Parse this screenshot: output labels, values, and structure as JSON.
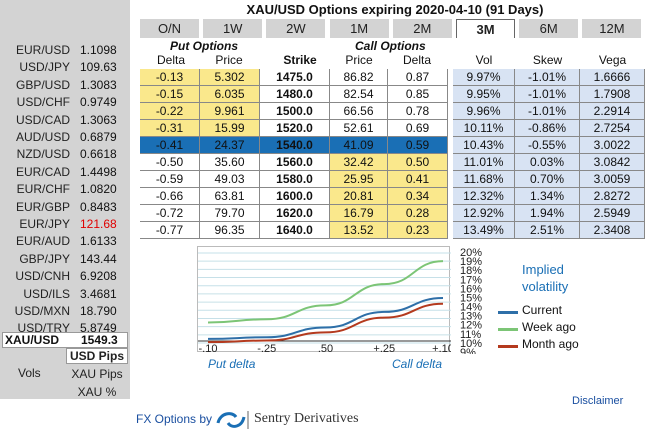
{
  "title": "XAU/USD Options expiring 2020-04-10 (91 Days)",
  "tabs": [
    "O/N",
    "1W",
    "2W",
    "1M",
    "2M",
    "3M",
    "6M",
    "12M"
  ],
  "active_tab": "3M",
  "fx_rates": [
    {
      "pair": "EUR/USD",
      "rate": "1.1098"
    },
    {
      "pair": "USD/JPY",
      "rate": "109.63"
    },
    {
      "pair": "GBP/USD",
      "rate": "1.3083"
    },
    {
      "pair": "USD/CHF",
      "rate": "0.9749"
    },
    {
      "pair": "USD/CAD",
      "rate": "1.3063"
    },
    {
      "pair": "AUD/USD",
      "rate": "0.6879"
    },
    {
      "pair": "NZD/USD",
      "rate": "0.6618"
    },
    {
      "pair": "EUR/CAD",
      "rate": "1.4498"
    },
    {
      "pair": "EUR/CHF",
      "rate": "1.0820"
    },
    {
      "pair": "EUR/GBP",
      "rate": "0.8483"
    },
    {
      "pair": "EUR/JPY",
      "rate": "121.68",
      "highlight": "#e00000"
    },
    {
      "pair": "EUR/AUD",
      "rate": "1.6133"
    },
    {
      "pair": "GBP/JPY",
      "rate": "143.44"
    },
    {
      "pair": "USD/CNH",
      "rate": "6.9208"
    },
    {
      "pair": "USD/ILS",
      "rate": "3.4681"
    },
    {
      "pair": "USD/MXN",
      "rate": "18.790"
    },
    {
      "pair": "USD/TRY",
      "rate": "5.8749"
    }
  ],
  "selected_pair": {
    "pair": "XAU/USD",
    "rate": "1549.3"
  },
  "vols": {
    "label": "Vols",
    "options": [
      "USD Pips",
      "XAU Pips",
      "XAU %"
    ],
    "selected": "USD Pips"
  },
  "section_headers": {
    "put": "Put Options",
    "call": "Call Options"
  },
  "column_headers": [
    "Delta",
    "Price",
    "Strike",
    "Price",
    "Delta",
    "Vol",
    "Skew",
    "Vega"
  ],
  "rows": [
    {
      "put_delta": "-0.13",
      "put_price": "5.302",
      "strike": "1475.0",
      "call_price": "86.82",
      "call_delta": "0.87",
      "vol": "9.97%",
      "skew": "-1.01%",
      "vega": "1.6666"
    },
    {
      "put_delta": "-0.15",
      "put_price": "6.035",
      "strike": "1480.0",
      "call_price": "82.54",
      "call_delta": "0.85",
      "vol": "9.95%",
      "skew": "-1.01%",
      "vega": "1.7908"
    },
    {
      "put_delta": "-0.22",
      "put_price": "9.961",
      "strike": "1500.0",
      "call_price": "66.56",
      "call_delta": "0.78",
      "vol": "9.96%",
      "skew": "-1.01%",
      "vega": "2.2914"
    },
    {
      "put_delta": "-0.31",
      "put_price": "15.99",
      "strike": "1520.0",
      "call_price": "52.61",
      "call_delta": "0.69",
      "vol": "10.11%",
      "skew": "-0.86%",
      "vega": "2.7254"
    },
    {
      "put_delta": "-0.41",
      "put_price": "24.37",
      "strike": "1540.0",
      "call_price": "41.09",
      "call_delta": "0.59",
      "vol": "10.43%",
      "skew": "-0.55%",
      "vega": "3.0022"
    },
    {
      "put_delta": "-0.50",
      "put_price": "35.60",
      "strike": "1560.0",
      "call_price": "32.42",
      "call_delta": "0.50",
      "vol": "11.01%",
      "skew": "0.03%",
      "vega": "3.0842"
    },
    {
      "put_delta": "-0.59",
      "put_price": "49.03",
      "strike": "1580.0",
      "call_price": "25.95",
      "call_delta": "0.41",
      "vol": "11.68%",
      "skew": "0.70%",
      "vega": "3.0059"
    },
    {
      "put_delta": "-0.66",
      "put_price": "63.81",
      "strike": "1600.0",
      "call_price": "20.81",
      "call_delta": "0.34",
      "vol": "12.32%",
      "skew": "1.34%",
      "vega": "2.8272"
    },
    {
      "put_delta": "-0.72",
      "put_price": "79.70",
      "strike": "1620.0",
      "call_price": "16.79",
      "call_delta": "0.28",
      "vol": "12.92%",
      "skew": "1.94%",
      "vega": "2.5949"
    },
    {
      "put_delta": "-0.77",
      "put_price": "96.35",
      "strike": "1640.0",
      "call_price": "13.52",
      "call_delta": "0.23",
      "vol": "13.49%",
      "skew": "2.51%",
      "vega": "2.3408"
    }
  ],
  "colors": {
    "put_highlight": "#fae88c",
    "call_highlight": "#fae88c",
    "vol_bg": "#d8e3f3",
    "selected_row": "#1a6fb5"
  },
  "chart_data": {
    "type": "line",
    "x_ticks": [
      "-.10",
      "-.25",
      ".50",
      "+.25",
      "+.10"
    ],
    "y_ticks": [
      "20%",
      "19%",
      "18%",
      "17%",
      "16%",
      "15%",
      "14%",
      "13%",
      "12%",
      "11%",
      "10%",
      "9%"
    ],
    "ylim": [
      9,
      20
    ],
    "series": [
      {
        "name": "Current",
        "color": "#2e6fa8",
        "values": [
          9.5,
          9.7,
          10.9,
          12.8,
          14.5
        ]
      },
      {
        "name": "Week ago",
        "color": "#7cc576",
        "values": [
          11.5,
          11.9,
          13.6,
          16.2,
          19.0
        ]
      },
      {
        "name": "Month ago",
        "color": "#b43a1e",
        "values": [
          9.1,
          9.3,
          10.3,
          12.1,
          13.8
        ]
      }
    ],
    "legend_title": [
      "Implied",
      "volatility"
    ],
    "xlabel_left": "Put delta",
    "xlabel_right": "Call delta"
  },
  "disclaimer": "Disclaimer",
  "footer": {
    "prefix": "FX Options by",
    "brand": "Sentry Derivatives"
  }
}
